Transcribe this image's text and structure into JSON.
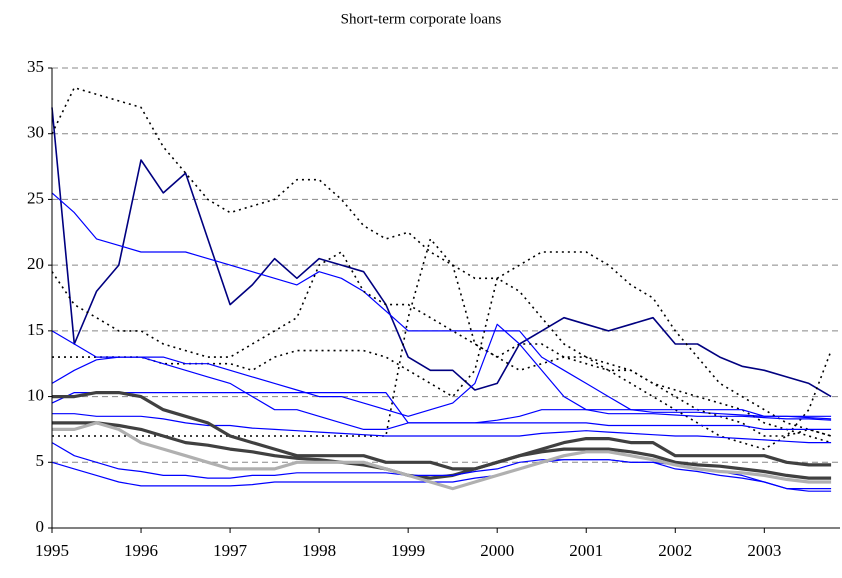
{
  "chart_data": {
    "type": "line",
    "title": "Short-term corporate loans",
    "x": [
      1995,
      1995.25,
      1995.5,
      1995.75,
      1996,
      1996.25,
      1996.5,
      1996.75,
      1997,
      1997.25,
      1997.5,
      1997.75,
      1998,
      1998.25,
      1998.5,
      1998.75,
      1999,
      1999.25,
      1999.5,
      1999.75,
      2000,
      2000.25,
      2000.5,
      2000.75,
      2001,
      2001.25,
      2001.5,
      2001.75,
      2002,
      2002.25,
      2002.5,
      2002.75,
      2003,
      2003.25,
      2003.5,
      2003.75
    ],
    "xlim": [
      1995,
      2003.85
    ],
    "xticks": [
      1995,
      1996,
      1997,
      1998,
      1999,
      2000,
      2001,
      2002,
      2003
    ],
    "ylim": [
      0,
      35
    ],
    "yticks": [
      0,
      5,
      10,
      15,
      20,
      25,
      30,
      35
    ],
    "grid": true,
    "series": [
      {
        "color": "#000080",
        "width": 1.6,
        "dash": "none",
        "values": [
          32,
          14,
          18,
          20,
          28,
          25.5,
          27,
          22,
          17,
          18.5,
          20.5,
          19,
          20.5,
          20,
          19.5,
          17,
          13,
          12,
          12,
          10.5,
          11,
          14,
          15,
          16,
          15.5,
          15,
          15.5,
          16,
          14,
          14,
          13,
          12.3,
          12,
          11.5,
          11,
          10
        ]
      },
      {
        "color": "#0000ff",
        "width": 1.2,
        "dash": "none",
        "values": [
          25.5,
          24,
          22,
          21.5,
          21,
          21,
          21,
          20.5,
          20,
          19.5,
          19,
          18.5,
          19.5,
          19,
          18,
          16.5,
          15,
          15,
          15,
          15,
          15,
          15,
          13,
          12,
          11,
          10,
          9,
          8.8,
          8.8,
          8.8,
          8.7,
          8.6,
          8.5,
          8.5,
          8.4,
          8.3
        ]
      },
      {
        "color": "#000000",
        "width": 1.6,
        "dash": "2,4",
        "values": [
          30,
          33.5,
          33,
          32.5,
          32,
          29,
          27,
          25,
          24,
          24.5,
          25,
          26.5,
          26.5,
          25,
          23,
          22,
          22.5,
          21,
          20,
          19,
          19,
          20,
          21,
          21,
          21,
          20,
          18.5,
          17.5,
          15,
          13,
          11,
          10,
          9,
          8,
          7.5,
          7
        ]
      },
      {
        "color": "#000000",
        "width": 1.6,
        "dash": "2,4",
        "values": [
          19.5,
          17,
          16,
          15,
          15,
          14,
          13.5,
          13,
          13,
          14,
          15,
          16,
          20,
          21,
          18,
          17,
          17,
          16,
          15,
          14,
          13,
          12,
          12.5,
          13,
          12.5,
          12,
          11,
          10,
          9,
          8,
          7,
          6.5,
          6,
          7,
          9,
          13.5
        ]
      },
      {
        "color": "#000000",
        "width": 1.6,
        "dash": "2,4",
        "values": [
          13,
          13,
          13,
          13,
          13,
          12.5,
          12.5,
          12.5,
          12.5,
          12,
          13,
          13.5,
          13.5,
          13.5,
          13.5,
          13,
          12,
          11,
          10,
          12,
          19,
          18,
          16,
          14,
          13,
          12.5,
          12,
          11,
          10,
          9,
          8.5,
          8,
          7,
          7,
          7.5,
          7
        ]
      },
      {
        "color": "#000000",
        "width": 1.6,
        "dash": "2,4",
        "values": [
          7,
          7,
          7,
          7,
          7,
          7,
          7,
          7,
          7,
          7,
          7,
          7,
          7,
          7,
          7,
          7,
          16,
          22,
          20,
          14,
          13,
          14,
          14,
          13,
          13,
          12,
          12,
          11,
          10.5,
          10,
          9.5,
          9,
          8,
          7.5,
          7,
          6.5
        ]
      },
      {
        "color": "#0000ff",
        "width": 1.2,
        "dash": "none",
        "values": [
          15,
          14,
          13,
          13,
          13,
          12.5,
          12,
          11.5,
          11,
          10,
          9,
          9,
          8.5,
          8,
          7.5,
          7.5,
          8,
          8,
          8,
          8,
          8.2,
          8.5,
          9,
          9,
          9,
          9,
          9,
          9,
          9,
          9,
          9,
          9,
          8.5,
          8.5,
          8.5,
          8.5
        ]
      },
      {
        "color": "#0000ff",
        "width": 1.2,
        "dash": "none",
        "values": [
          11,
          12,
          12.8,
          13,
          13,
          13,
          12.5,
          12.5,
          12,
          11.5,
          11,
          10.5,
          10,
          10,
          9.5,
          9,
          8.5,
          9,
          9.5,
          11,
          15.5,
          14,
          12,
          10,
          9,
          8.7,
          8.7,
          8.7,
          8.6,
          8.5,
          8.5,
          8.5,
          8.4,
          8.3,
          8.3,
          8.2
        ]
      },
      {
        "color": "#0000ff",
        "width": 1.2,
        "dash": "none",
        "values": [
          9.5,
          10.3,
          10.3,
          10.3,
          10.3,
          10.3,
          10.3,
          10.3,
          10.3,
          10.3,
          10.3,
          10.3,
          10.3,
          10.3,
          10.3,
          10.3,
          8,
          8,
          8,
          8,
          8,
          8,
          8,
          8,
          8,
          7.8,
          7.8,
          7.8,
          7.8,
          7.8,
          7.8,
          7.8,
          7.5,
          7.5,
          7.5,
          7.5
        ]
      },
      {
        "color": "#0000ff",
        "width": 1.2,
        "dash": "none",
        "values": [
          8.7,
          8.7,
          8.5,
          8.5,
          8.5,
          8.3,
          8,
          7.8,
          7.8,
          7.6,
          7.5,
          7.4,
          7.3,
          7.2,
          7.1,
          7.0,
          7,
          7,
          7,
          7,
          7,
          7,
          7.2,
          7.3,
          7.4,
          7.3,
          7.2,
          7.1,
          7,
          7,
          6.9,
          6.8,
          6.7,
          6.6,
          6.5,
          6.5
        ]
      },
      {
        "color": "#404040",
        "width": 3.2,
        "dash": "none",
        "values": [
          10,
          10,
          10.3,
          10.3,
          10,
          9,
          8.5,
          8,
          7,
          6.5,
          6,
          5.5,
          5.5,
          5.5,
          5.5,
          5,
          5,
          5,
          4.5,
          4.5,
          5,
          5.5,
          6,
          6.5,
          6.8,
          6.8,
          6.5,
          6.5,
          5.5,
          5.5,
          5.5,
          5.5,
          5.5,
          5,
          4.8,
          4.8
        ]
      },
      {
        "color": "#404040",
        "width": 3.2,
        "dash": "none",
        "values": [
          8,
          8,
          8,
          7.8,
          7.5,
          7,
          6.5,
          6.3,
          6,
          5.8,
          5.5,
          5.3,
          5.2,
          5,
          4.8,
          4.5,
          4,
          3.8,
          4,
          4.5,
          5,
          5.5,
          5.8,
          6,
          6,
          6,
          5.8,
          5.5,
          5,
          4.8,
          4.7,
          4.5,
          4.3,
          4,
          3.8,
          3.8
        ]
      },
      {
        "color": "#0000ff",
        "width": 1.2,
        "dash": "none",
        "values": [
          6.5,
          5.5,
          5,
          4.5,
          4.3,
          4,
          4,
          3.8,
          3.8,
          4,
          4,
          4.2,
          4.2,
          4.2,
          4.2,
          4.2,
          4,
          4,
          4,
          4.3,
          4.5,
          5,
          5.2,
          5.2,
          5.2,
          5.2,
          5,
          5,
          4.8,
          4.5,
          4.3,
          4,
          3.5,
          3,
          3,
          3
        ]
      },
      {
        "color": "#0000ff",
        "width": 1.2,
        "dash": "none",
        "values": [
          5,
          4.5,
          4,
          3.5,
          3.2,
          3.2,
          3.2,
          3.2,
          3.2,
          3.3,
          3.5,
          3.5,
          3.5,
          3.5,
          3.5,
          3.5,
          3.5,
          3.5,
          3.5,
          3.8,
          4,
          4.5,
          5,
          5.2,
          5.2,
          5.2,
          5,
          5,
          4.5,
          4.3,
          4,
          3.8,
          3.5,
          3,
          2.8,
          2.8
        ]
      },
      {
        "color": "#b0b0b0",
        "width": 3.2,
        "dash": "none",
        "values": [
          7.5,
          7.5,
          8,
          7.5,
          6.5,
          6,
          5.5,
          5,
          4.5,
          4.5,
          4.5,
          5,
          5,
          5,
          5,
          4.5,
          4,
          3.5,
          3,
          3.5,
          4,
          4.5,
          5,
          5.5,
          5.8,
          5.8,
          5.5,
          5.2,
          4.8,
          4.5,
          4.3,
          4.2,
          4,
          3.7,
          3.5,
          3.5
        ]
      }
    ]
  }
}
